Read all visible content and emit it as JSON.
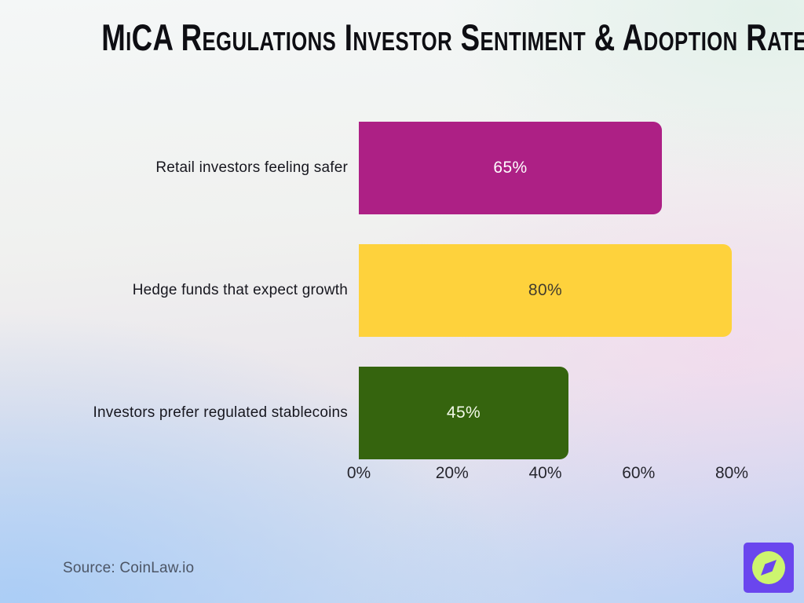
{
  "title": "MiCA Regulations Investor Sentiment & Adoption Rates",
  "chart_data": {
    "type": "bar",
    "orientation": "horizontal",
    "title": "MiCA Regulations Investor Sentiment & Adoption Rates",
    "categories": [
      "Retail investors feeling safer",
      "Hedge funds that expect growth",
      "Investors prefer regulated stablecoins"
    ],
    "values": [
      65,
      80,
      45
    ],
    "bars": [
      {
        "label": "Retail investors feeling safer",
        "value": 65,
        "display": "65%",
        "color": "#AD2085",
        "value_text_color": "#FFFFFF"
      },
      {
        "label": "Hedge funds that expect growth",
        "value": 80,
        "display": "80%",
        "color": "#FED23C",
        "value_text_color": "#423C2E"
      },
      {
        "label": "Investors prefer regulated stablecoins",
        "value": 45,
        "display": "45%",
        "color": "#35640E",
        "value_text_color": "#F3FAE9"
      }
    ],
    "x_ticks": [
      {
        "value": 0,
        "label": "0%"
      },
      {
        "value": 20,
        "label": "20%"
      },
      {
        "value": 40,
        "label": "40%"
      },
      {
        "value": 60,
        "label": "60%"
      },
      {
        "value": 80,
        "label": "80%"
      }
    ],
    "xlim": [
      0,
      80
    ],
    "xlabel": "",
    "ylabel": "",
    "grid": false,
    "legend": false
  },
  "source": {
    "text": "Source: CoinLaw.io"
  },
  "logo": {
    "name": "coinlaw-compass-logo",
    "bg_color": "#6A46EE",
    "circle_color": "#CDF56F",
    "needle_color": "#6A46EE"
  }
}
